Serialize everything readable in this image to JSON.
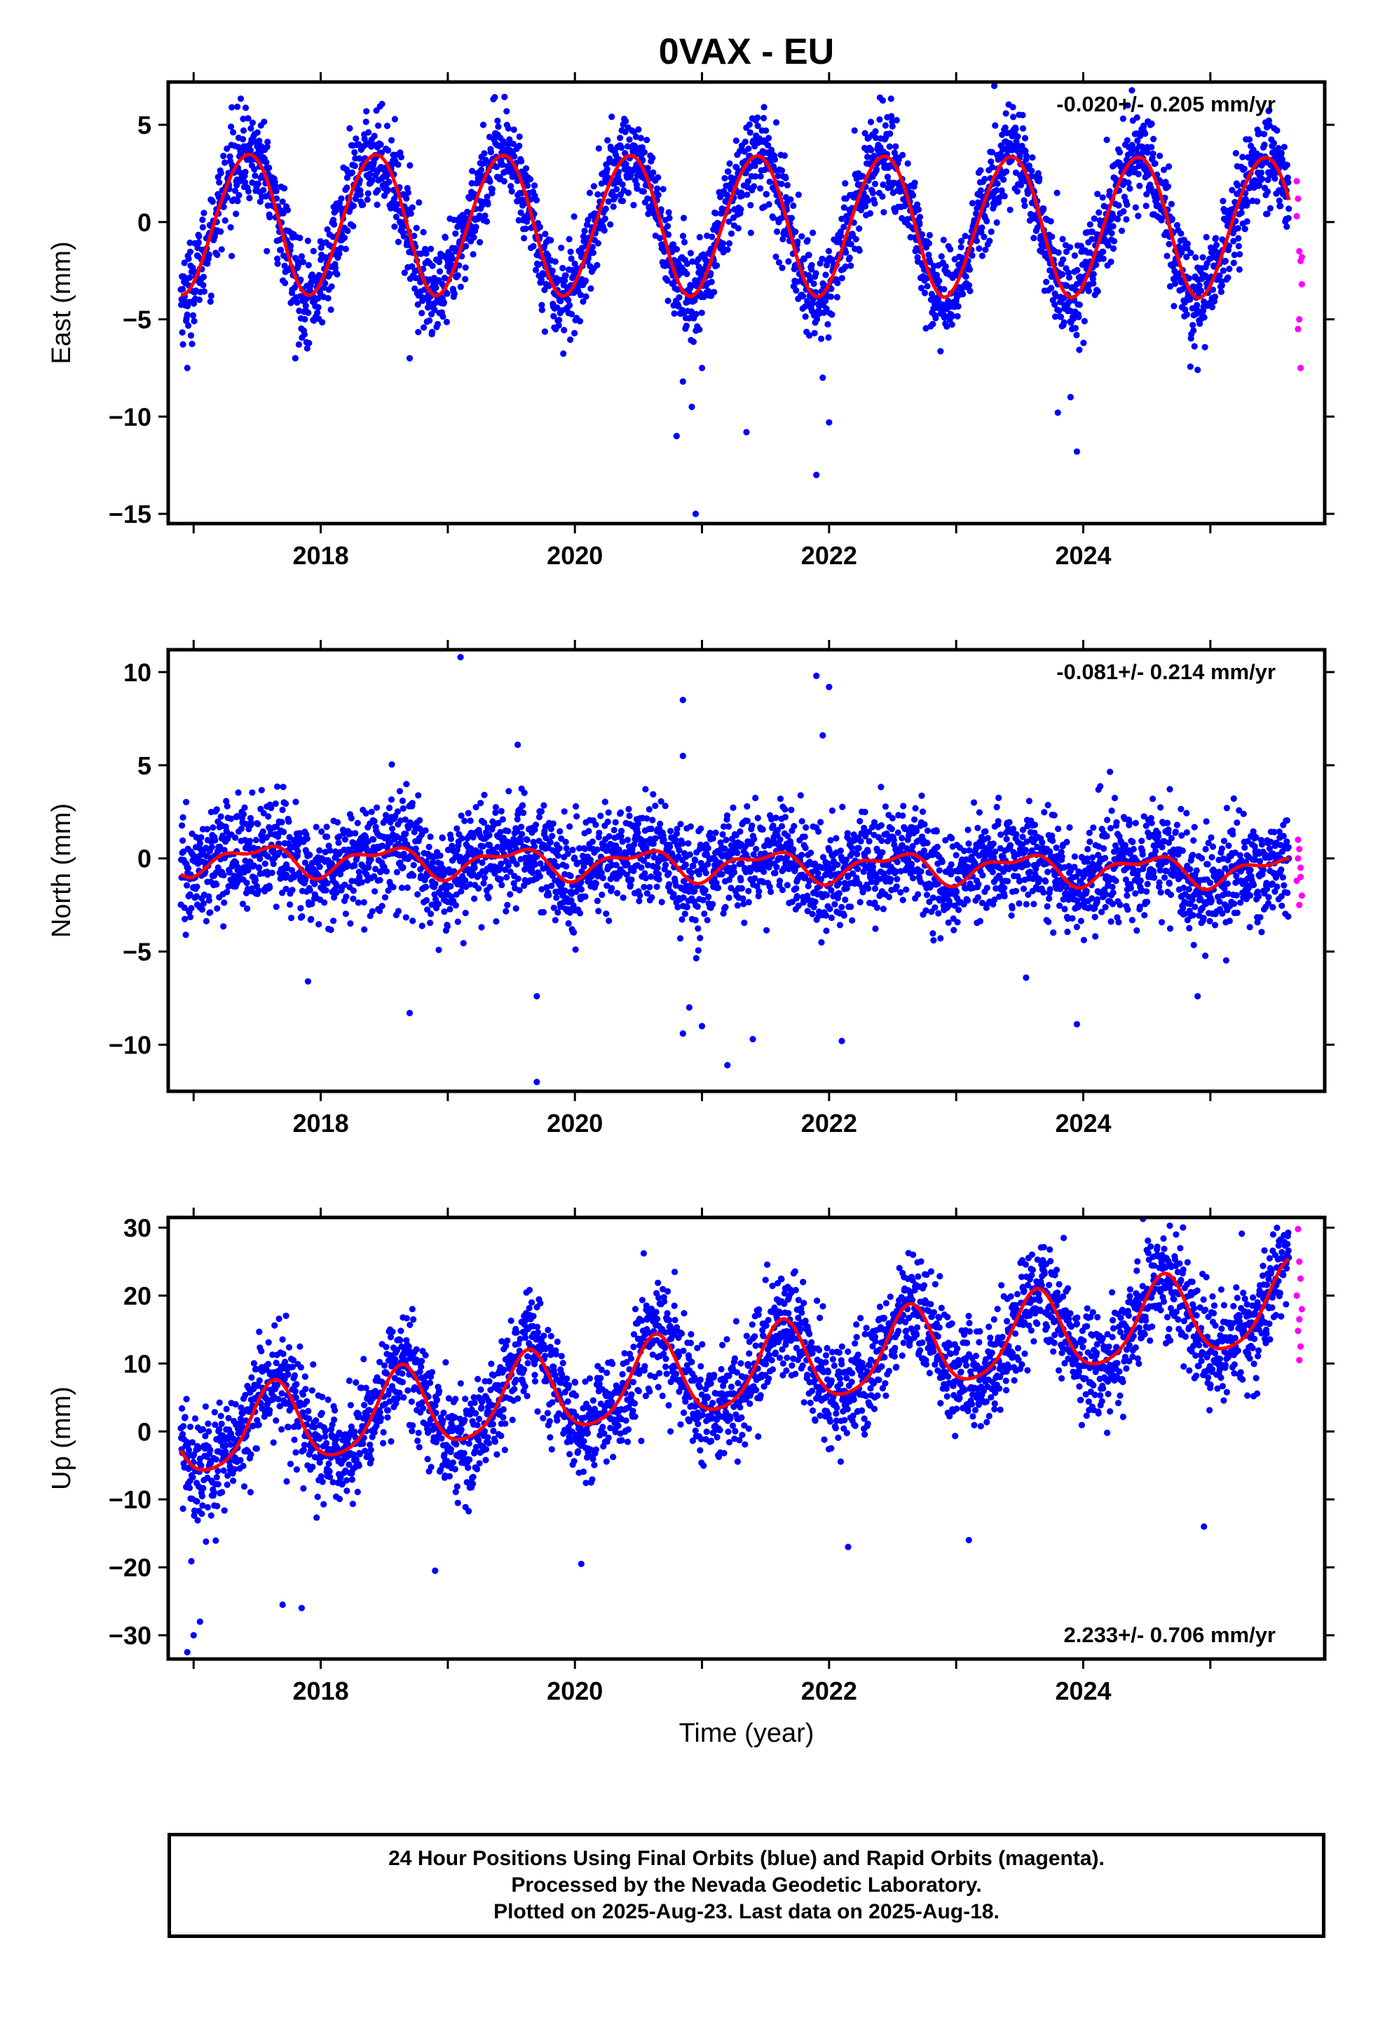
{
  "chart_data": [
    {
      "type": "scatter",
      "title": "0VAX - EU",
      "ylabel": "East (mm)",
      "xlabel": "",
      "xlim": [
        2016.8,
        2025.9
      ],
      "ylim": [
        -15.5,
        7.2
      ],
      "xticks": [
        2018,
        2020,
        2022,
        2024
      ],
      "yticks": [
        5,
        0,
        -5,
        -10,
        -15
      ],
      "rate_text": "-0.020+/- 0.205 mm/yr",
      "rate_position": "top-right",
      "grid": false,
      "model": {
        "mean": 0,
        "trend": -0.02,
        "annual_amp": 3.6,
        "annual_peak": 0.42,
        "semiannual_amp": 0.2,
        "semiannual_peak": 0.1,
        "start": 2016.9,
        "end": 2025.62
      },
      "scatter_noise": 1.2,
      "outliers": [
        {
          "x": 2020.95,
          "y": -15.0
        },
        {
          "x": 2021.9,
          "y": -13.0
        },
        {
          "x": 2023.95,
          "y": -11.8
        },
        {
          "x": 2020.8,
          "y": -11.0
        },
        {
          "x": 2021.35,
          "y": -10.8
        },
        {
          "x": 2022.0,
          "y": -10.3
        },
        {
          "x": 2020.92,
          "y": -9.5
        },
        {
          "x": 2023.8,
          "y": -9.8
        },
        {
          "x": 2023.9,
          "y": -9.0
        },
        {
          "x": 2020.85,
          "y": -8.2
        },
        {
          "x": 2021.0,
          "y": -7.5
        },
        {
          "x": 2016.95,
          "y": -7.5
        },
        {
          "x": 2017.8,
          "y": -7.0
        },
        {
          "x": 2018.7,
          "y": -7.0
        },
        {
          "x": 2024.9,
          "y": -7.6
        },
        {
          "x": 2021.95,
          "y": -8.0
        },
        {
          "x": 2023.3,
          "y": 7.0
        },
        {
          "x": 2024.35,
          "y": 6.0
        },
        {
          "x": 2022.4,
          "y": 6.4
        },
        {
          "x": 2017.3,
          "y": 5.9
        }
      ],
      "rapid_points": [
        {
          "x": 2025.68,
          "y": 2.1
        },
        {
          "x": 2025.69,
          "y": 1.2
        },
        {
          "x": 2025.7,
          "y": -1.5
        },
        {
          "x": 2025.71,
          "y": -2.0
        },
        {
          "x": 2025.72,
          "y": -3.2
        },
        {
          "x": 2025.7,
          "y": -5.0
        },
        {
          "x": 2025.69,
          "y": -5.5
        },
        {
          "x": 2025.71,
          "y": -7.5
        },
        {
          "x": 2025.68,
          "y": 0.3
        },
        {
          "x": 2025.72,
          "y": -1.8
        }
      ]
    },
    {
      "type": "scatter",
      "title": "",
      "ylabel": "North (mm)",
      "xlabel": "",
      "xlim": [
        2016.8,
        2025.9
      ],
      "ylim": [
        -12.5,
        11.2
      ],
      "xticks": [
        2018,
        2020,
        2022,
        2024
      ],
      "yticks": [
        10,
        5,
        0,
        -5,
        -10
      ],
      "rate_text": "-0.081+/- 0.214 mm/yr",
      "rate_position": "top-right",
      "grid": false,
      "model": {
        "mean": 0,
        "trend": -0.08,
        "annual_amp": 0.7,
        "annual_peak": 0.5,
        "semiannual_amp": 0.35,
        "semiannual_peak": 0.2,
        "start": 2016.9,
        "end": 2025.62
      },
      "scatter_noise": 1.4,
      "outliers": [
        {
          "x": 2019.1,
          "y": 10.8
        },
        {
          "x": 2021.9,
          "y": 9.8
        },
        {
          "x": 2022.0,
          "y": 9.2
        },
        {
          "x": 2020.85,
          "y": 8.5
        },
        {
          "x": 2021.95,
          "y": 6.6
        },
        {
          "x": 2019.55,
          "y": 6.1
        },
        {
          "x": 2020.85,
          "y": 5.5
        },
        {
          "x": 2019.7,
          "y": -12.0
        },
        {
          "x": 2021.2,
          "y": -11.1
        },
        {
          "x": 2022.1,
          "y": -9.8
        },
        {
          "x": 2020.85,
          "y": -9.4
        },
        {
          "x": 2021.0,
          "y": -9.0
        },
        {
          "x": 2023.95,
          "y": -8.9
        },
        {
          "x": 2018.7,
          "y": -8.3
        },
        {
          "x": 2024.9,
          "y": -7.4
        },
        {
          "x": 2019.7,
          "y": -7.4
        },
        {
          "x": 2021.4,
          "y": -9.7
        },
        {
          "x": 2017.9,
          "y": -6.6
        },
        {
          "x": 2023.55,
          "y": -6.4
        },
        {
          "x": 2020.9,
          "y": -8.0
        }
      ],
      "rapid_points": [
        {
          "x": 2025.69,
          "y": 1.0
        },
        {
          "x": 2025.7,
          "y": 0.5
        },
        {
          "x": 2025.71,
          "y": -0.5
        },
        {
          "x": 2025.68,
          "y": -1.2
        },
        {
          "x": 2025.72,
          "y": -2.0
        },
        {
          "x": 2025.7,
          "y": -2.5
        },
        {
          "x": 2025.69,
          "y": 0.0
        },
        {
          "x": 2025.71,
          "y": -1.0
        }
      ]
    },
    {
      "type": "scatter",
      "title": "",
      "ylabel": "Up (mm)",
      "xlabel": "Time (year)",
      "xlim": [
        2016.8,
        2025.9
      ],
      "ylim": [
        -33.5,
        31.5
      ],
      "xticks": [
        2018,
        2020,
        2022,
        2024
      ],
      "yticks": [
        30,
        20,
        10,
        0,
        -10,
        -20,
        -30
      ],
      "rate_text": "2.233+/- 0.706 mm/yr",
      "rate_position": "bottom-right",
      "grid": false,
      "model": {
        "mean": -1.0,
        "trend": 2.233,
        "annual_amp": 6.0,
        "annual_peak": 0.63,
        "semiannual_amp": 1.0,
        "semiannual_peak": 0.15,
        "start": 2016.9,
        "end": 2025.62
      },
      "scatter_noise": 4.0,
      "outliers": [
        {
          "x": 2016.95,
          "y": -32.5
        },
        {
          "x": 2017.0,
          "y": -30.0
        },
        {
          "x": 2017.05,
          "y": -28.0
        },
        {
          "x": 2017.7,
          "y": -25.5
        },
        {
          "x": 2017.85,
          "y": -26.0
        },
        {
          "x": 2018.9,
          "y": -20.5
        },
        {
          "x": 2020.05,
          "y": -19.5
        },
        {
          "x": 2022.15,
          "y": -17.0
        },
        {
          "x": 2023.1,
          "y": -16.0
        },
        {
          "x": 2024.95,
          "y": -14.0
        },
        {
          "x": 2019.6,
          "y": 17.0
        },
        {
          "x": 2021.5,
          "y": 22.3
        },
        {
          "x": 2022.7,
          "y": 22.8
        },
        {
          "x": 2024.5,
          "y": 26.7
        },
        {
          "x": 2025.6,
          "y": 24.0
        },
        {
          "x": 2018.6,
          "y": 12.0
        },
        {
          "x": 2020.75,
          "y": 15.5
        },
        {
          "x": 2023.6,
          "y": 21.0
        }
      ],
      "rapid_points": [
        {
          "x": 2025.69,
          "y": 29.8
        },
        {
          "x": 2025.7,
          "y": 25.0
        },
        {
          "x": 2025.71,
          "y": 22.5
        },
        {
          "x": 2025.68,
          "y": 20.0
        },
        {
          "x": 2025.72,
          "y": 18.0
        },
        {
          "x": 2025.7,
          "y": 16.5
        },
        {
          "x": 2025.69,
          "y": 14.8
        },
        {
          "x": 2025.71,
          "y": 12.5
        },
        {
          "x": 2025.7,
          "y": 10.5
        }
      ]
    }
  ],
  "colors": {
    "final_orbits": "#0000ff",
    "rapid_orbits": "#ff00ff",
    "model_fit": "#ff0000",
    "axis": "#000000"
  },
  "footer": {
    "line1": "24 Hour Positions Using Final Orbits (blue) and Rapid Orbits (magenta).",
    "line2": "Processed by the Nevada Geodetic Laboratory.",
    "line3": "Plotted on 2025-Aug-23. Last data on 2025-Aug-18."
  }
}
